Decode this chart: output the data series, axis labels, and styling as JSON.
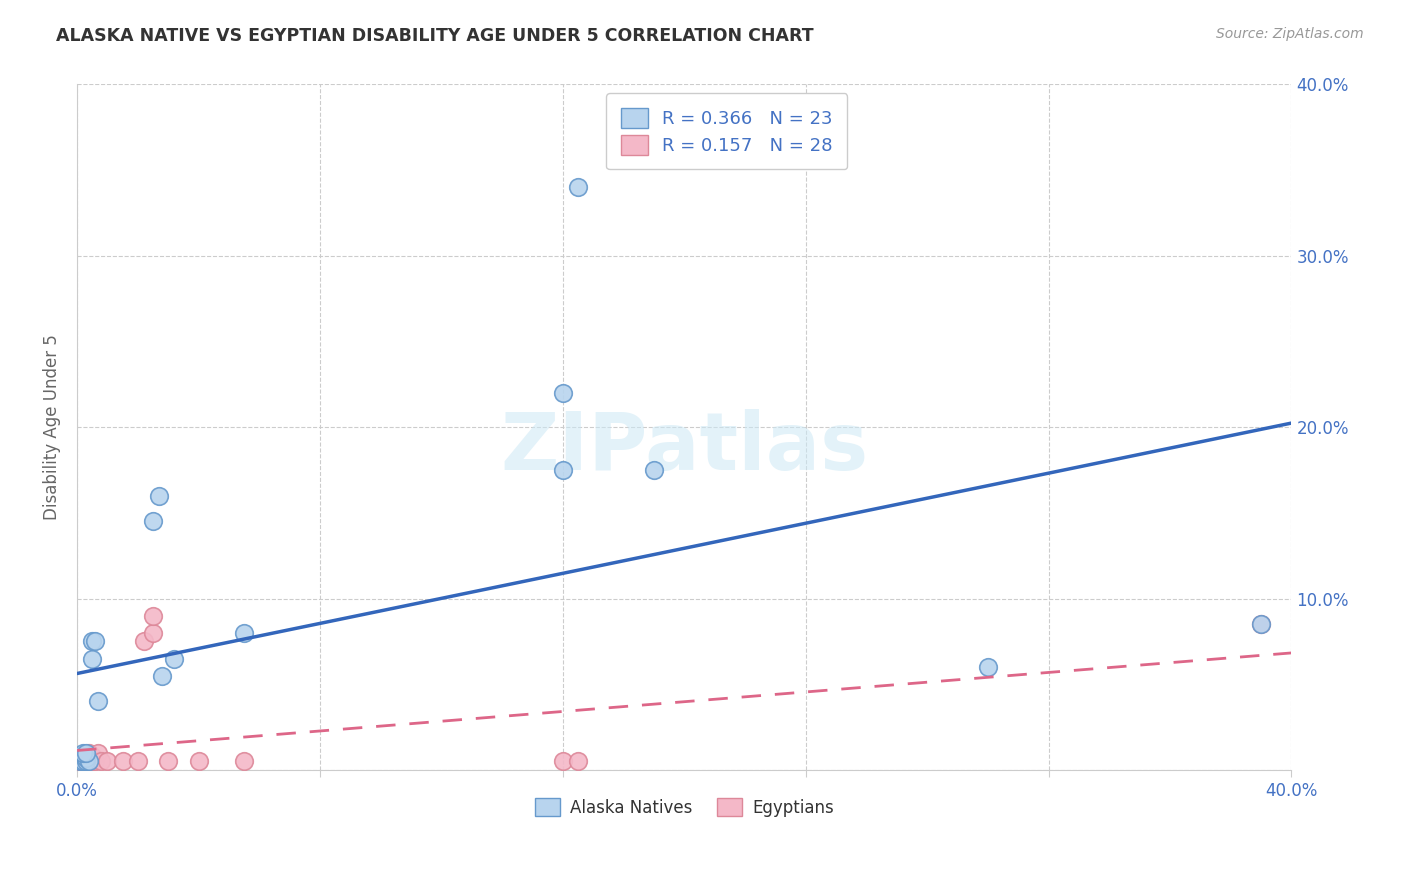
{
  "title": "ALASKA NATIVE VS EGYPTIAN DISABILITY AGE UNDER 5 CORRELATION CHART",
  "source": "Source: ZipAtlas.com",
  "ylabel": "Disability Age Under 5",
  "xlim": [
    0.0,
    0.4
  ],
  "ylim": [
    0.0,
    0.4
  ],
  "xticks": [
    0.0,
    0.08,
    0.16,
    0.24,
    0.32,
    0.4
  ],
  "yticks": [
    0.0,
    0.1,
    0.2,
    0.3,
    0.4
  ],
  "xticklabels_bottom": [
    "0.0%",
    "",
    "",
    "",
    "",
    "40.0%"
  ],
  "yticklabels_right": [
    "",
    "10.0%",
    "20.0%",
    "30.0%",
    "40.0%"
  ],
  "alaska_R": 0.366,
  "alaska_N": 23,
  "egyptian_R": 0.157,
  "egyptian_N": 28,
  "alaska_face": "#B8D4EE",
  "alaska_edge": "#6699CC",
  "egyptian_face": "#F4B8C8",
  "egyptian_edge": "#DD8899",
  "alaska_line": "#3366BB",
  "egyptian_line": "#DD6688",
  "tick_color": "#4472C4",
  "watermark": "ZIPatlas",
  "alaska_x": [
    0.001,
    0.001,
    0.002,
    0.003,
    0.003,
    0.004,
    0.005,
    0.005,
    0.006,
    0.007,
    0.025,
    0.027,
    0.028,
    0.032,
    0.055,
    0.16,
    0.16,
    0.165,
    0.19,
    0.3,
    0.39,
    0.002,
    0.003
  ],
  "alaska_y": [
    0.005,
    0.008,
    0.005,
    0.005,
    0.007,
    0.005,
    0.065,
    0.075,
    0.075,
    0.04,
    0.145,
    0.16,
    0.055,
    0.065,
    0.08,
    0.175,
    0.22,
    0.34,
    0.175,
    0.06,
    0.085,
    0.01,
    0.01
  ],
  "egyptian_x": [
    0.001,
    0.001,
    0.001,
    0.002,
    0.002,
    0.002,
    0.003,
    0.003,
    0.003,
    0.004,
    0.004,
    0.005,
    0.005,
    0.006,
    0.007,
    0.008,
    0.01,
    0.015,
    0.02,
    0.022,
    0.025,
    0.025,
    0.03,
    0.04,
    0.055,
    0.16,
    0.165,
    0.39
  ],
  "egyptian_y": [
    0.005,
    0.005,
    0.005,
    0.005,
    0.005,
    0.005,
    0.005,
    0.005,
    0.005,
    0.005,
    0.01,
    0.005,
    0.008,
    0.005,
    0.01,
    0.005,
    0.005,
    0.005,
    0.005,
    0.075,
    0.08,
    0.09,
    0.005,
    0.005,
    0.005,
    0.005,
    0.005,
    0.085
  ],
  "legend_bottom_labels": [
    "Alaska Natives",
    "Egyptians"
  ],
  "grid_color": "#CCCCCC",
  "grid_linestyle": "--",
  "grid_linewidth": 0.8,
  "watermark_color": "#CCE8F5",
  "watermark_alpha": 0.55,
  "watermark_fontsize": 58
}
